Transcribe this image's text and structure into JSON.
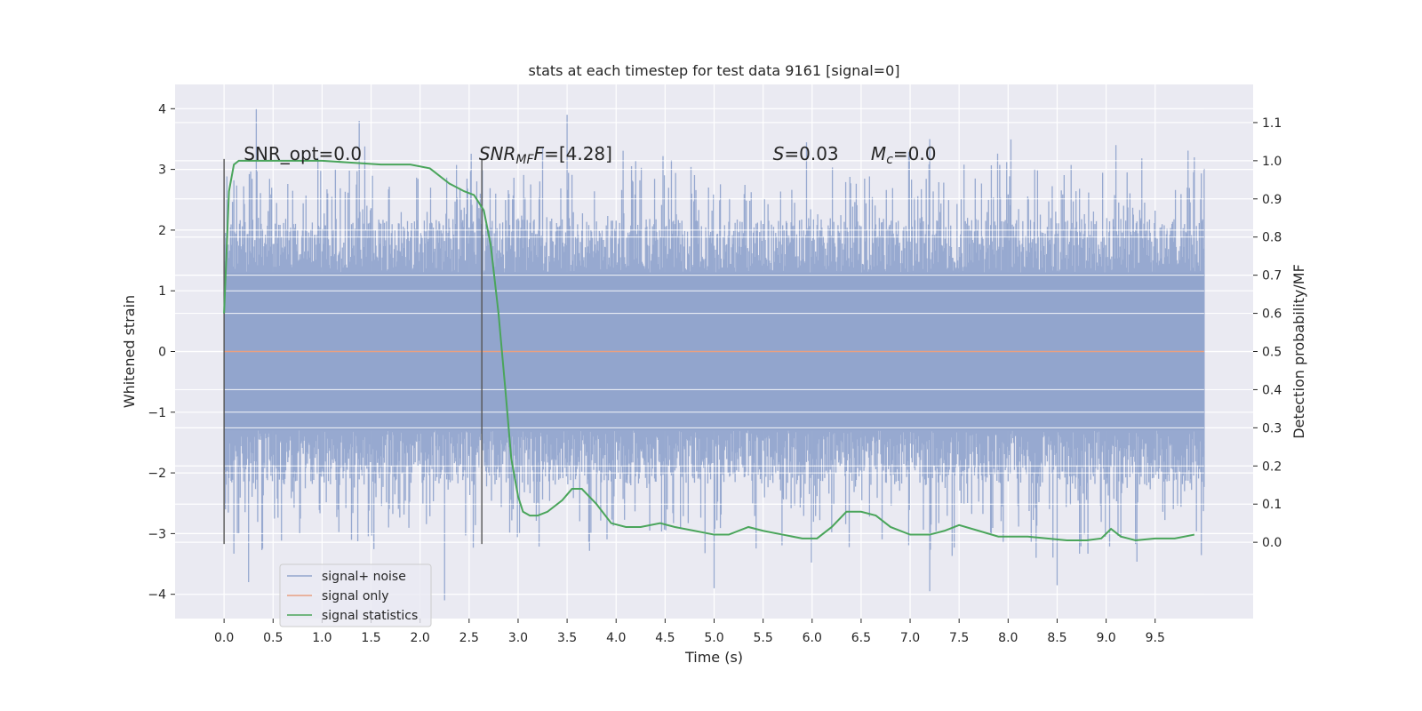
{
  "chart_data": {
    "type": "line",
    "title": "stats at each timestep for test data 9161 [signal=0]",
    "xlabel": "Time (s)",
    "ylabel": "Whitened strain",
    "ylabel_right": "Detection probability/MF",
    "xlim": [
      -0.5,
      10.5
    ],
    "ylim": [
      -4.4,
      4.4
    ],
    "ylim_right": [
      -0.2,
      1.2
    ],
    "x_ticks": [
      "0.0",
      "0.5",
      "1.0",
      "1.5",
      "2.0",
      "2.5",
      "3.0",
      "3.5",
      "4.0",
      "4.5",
      "5.0",
      "5.5",
      "6.0",
      "6.5",
      "7.0",
      "7.5",
      "8.0",
      "8.5",
      "9.0",
      "9.5"
    ],
    "y_ticks": [
      "−4",
      "−3",
      "−2",
      "−1",
      "0",
      "1",
      "2",
      "3",
      "4"
    ],
    "y_ticks_right": [
      "0.0",
      "0.1",
      "0.2",
      "0.3",
      "0.4",
      "0.5",
      "0.6",
      "0.7",
      "0.8",
      "0.9",
      "1.0",
      "1.1"
    ],
    "grid": true,
    "legend_position": "lower-left",
    "annotations": {
      "snr_opt": "SNR_opt=0.0",
      "snr_mf_main": "SNR",
      "snr_mf_sub": "MF",
      "snr_mf_value": "=[4.28]",
      "s_main": "S",
      "s_value": "=0.03",
      "mc_main": "M",
      "mc_sub": "c",
      "mc_value": "=0.0"
    },
    "vlines": [
      0.0,
      2.63
    ],
    "noise_envelope": {
      "x_range": [
        0.0,
        10.0
      ],
      "typical_band": [
        -1.3,
        1.3
      ],
      "peak_max": [
        [
          0.33,
          4.0
        ],
        [
          1.38,
          3.8
        ],
        [
          3.5,
          3.9
        ],
        [
          7.2,
          3.5
        ],
        [
          9.1,
          3.4
        ],
        [
          9.9,
          3.2
        ]
      ],
      "peak_min": [
        [
          0.25,
          -3.8
        ],
        [
          2.25,
          -4.1
        ],
        [
          5.0,
          -3.9
        ],
        [
          7.2,
          -3.95
        ],
        [
          8.5,
          -3.85
        ]
      ]
    },
    "series": [
      {
        "name": "signal+ noise",
        "color": "#92a5cd",
        "x": [
          0.0,
          10.0
        ],
        "y": [
          0.0,
          0.0
        ]
      },
      {
        "name": "signal only",
        "color": "#e8a082",
        "x": [
          0.0,
          10.0
        ],
        "y": [
          0.0,
          0.0
        ]
      },
      {
        "name": "signal statistics",
        "color": "#4aa55b",
        "axis": "right",
        "x": [
          0.0,
          0.05,
          0.1,
          0.15,
          0.2,
          0.3,
          0.5,
          0.8,
          1.0,
          1.3,
          1.6,
          1.9,
          2.1,
          2.3,
          2.45,
          2.55,
          2.65,
          2.72,
          2.8,
          2.87,
          2.93,
          3.0,
          3.05,
          3.12,
          3.2,
          3.3,
          3.45,
          3.55,
          3.65,
          3.8,
          3.95,
          4.1,
          4.25,
          4.45,
          4.6,
          4.8,
          5.0,
          5.15,
          5.35,
          5.5,
          5.7,
          5.9,
          6.05,
          6.2,
          6.35,
          6.5,
          6.65,
          6.8,
          7.0,
          7.2,
          7.35,
          7.5,
          7.7,
          7.9,
          8.1,
          8.2,
          8.4,
          8.6,
          8.8,
          8.95,
          9.05,
          9.15,
          9.3,
          9.5,
          9.7,
          9.9
        ],
        "y": [
          0.6,
          0.92,
          0.99,
          1.0,
          1.0,
          1.0,
          1.0,
          1.0,
          1.0,
          0.995,
          0.99,
          0.99,
          0.98,
          0.94,
          0.92,
          0.91,
          0.87,
          0.78,
          0.6,
          0.4,
          0.22,
          0.12,
          0.08,
          0.07,
          0.07,
          0.08,
          0.11,
          0.14,
          0.14,
          0.1,
          0.05,
          0.04,
          0.04,
          0.05,
          0.04,
          0.03,
          0.02,
          0.02,
          0.04,
          0.03,
          0.02,
          0.01,
          0.01,
          0.04,
          0.08,
          0.08,
          0.07,
          0.04,
          0.02,
          0.02,
          0.03,
          0.045,
          0.03,
          0.015,
          0.015,
          0.015,
          0.01,
          0.005,
          0.005,
          0.01,
          0.035,
          0.015,
          0.005,
          0.01,
          0.01,
          0.02
        ]
      }
    ]
  }
}
